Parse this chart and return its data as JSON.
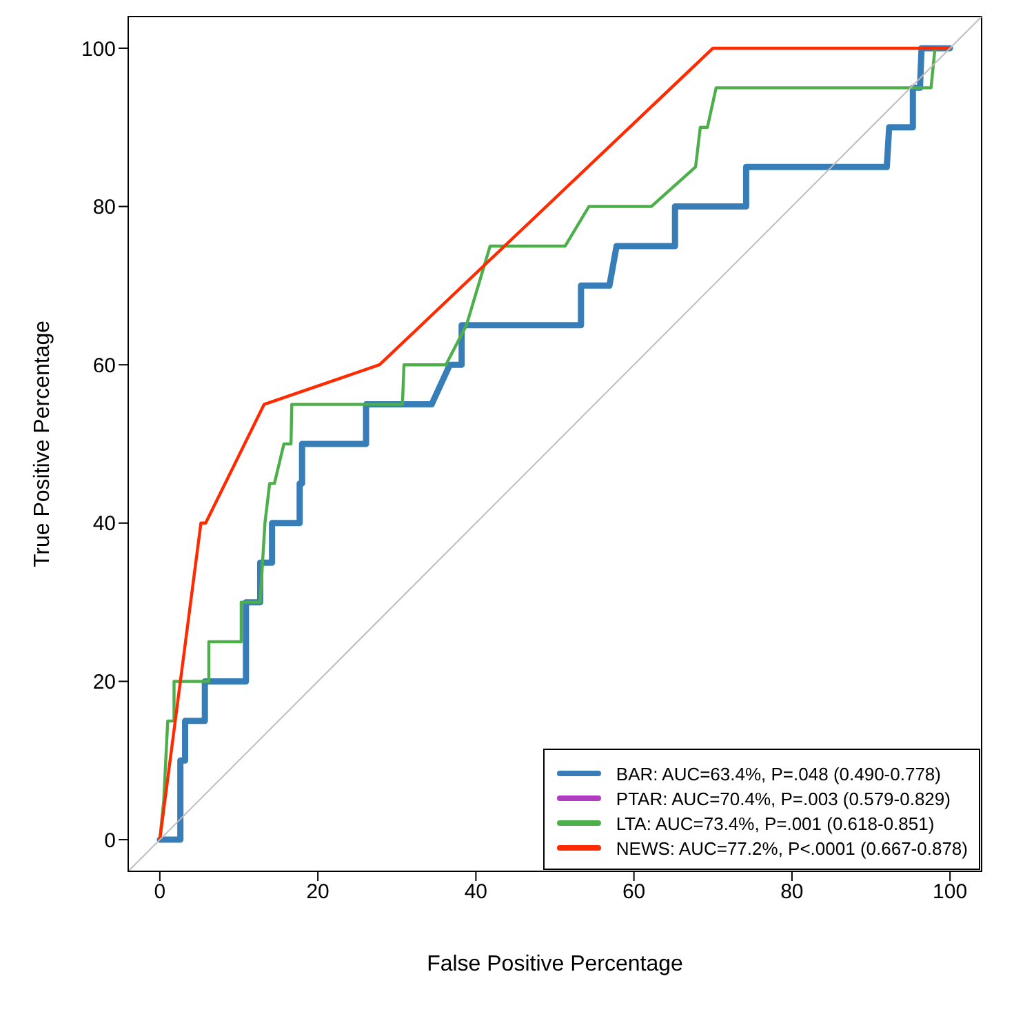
{
  "chart_data": {
    "type": "line",
    "xlabel": "False Positive Percentage",
    "ylabel": "True Positive Percentage",
    "xlim": [
      -4,
      104
    ],
    "ylim": [
      -4,
      104
    ],
    "xticks": [
      0,
      20,
      40,
      60,
      80,
      100
    ],
    "yticks": [
      0,
      20,
      40,
      60,
      80,
      100
    ],
    "grid": false,
    "legend": "bottom right",
    "marker": "none",
    "line_style": "solid",
    "series": [
      {
        "name": "BAR: AUC=63.4%, P=.048 (0.490-0.778)",
        "color": "#377eb8",
        "x": [
          0,
          2.6,
          2.6,
          3.2,
          3.2,
          5.7,
          5.7,
          10.9,
          10.9,
          12.7,
          12.7,
          14.2,
          14.2,
          17.7,
          17.7,
          18,
          18,
          26.1,
          26.1,
          34.4,
          36.7,
          38.2,
          38.2,
          53.3,
          53.3,
          56.9,
          57.8,
          65.2,
          65.2,
          74.2,
          74.2,
          92,
          92.3,
          95.3,
          95.3,
          96.2,
          96.4,
          100
        ],
        "values": [
          0,
          0,
          10,
          10,
          15,
          15,
          20,
          20,
          30,
          30,
          35,
          35,
          40,
          40,
          45,
          45,
          50,
          50,
          55,
          55,
          60,
          60,
          65,
          65,
          70,
          70,
          75,
          75,
          80,
          80,
          85,
          85,
          90,
          90,
          95,
          95,
          100,
          100
        ]
      },
      {
        "name": "PTAR: AUC=70.4%, P=.003 (0.579-0.829)",
        "color": "#b03fbf"
      },
      {
        "name": "LTA: AUC=73.4%, P=.001 (0.618-0.851)",
        "color": "#4daf4a",
        "x": [
          0,
          0.5,
          1,
          1.8,
          1.8,
          6.2,
          6.2,
          10.3,
          10.3,
          12.7,
          13,
          13.3,
          13.9,
          14.5,
          15.7,
          16.6,
          16.7,
          30.7,
          30.9,
          36.2,
          38.8,
          41.8,
          51.3,
          54.3,
          62.2,
          67.8,
          68.4,
          69.3,
          70.4,
          97.6,
          98.1,
          100
        ],
        "values": [
          0,
          5,
          15,
          15,
          20,
          20,
          25,
          25,
          30,
          30,
          35,
          40,
          45,
          45,
          50,
          50,
          55,
          55,
          60,
          60,
          65,
          75,
          75,
          80,
          80,
          85,
          90,
          90,
          95,
          95,
          100,
          100
        ]
      },
      {
        "name": "NEWS: AUC=77.2%, P<.0001 (0.667-0.878)",
        "color": "#ff2a00",
        "x": [
          0,
          5.2,
          5.8,
          13.2,
          27.8,
          70,
          100
        ],
        "values": [
          0,
          40,
          40,
          55,
          60,
          100,
          100
        ]
      },
      {
        "color": "#bebebe",
        "x": [
          -4,
          104
        ],
        "values": [
          -4,
          104
        ]
      }
    ]
  }
}
